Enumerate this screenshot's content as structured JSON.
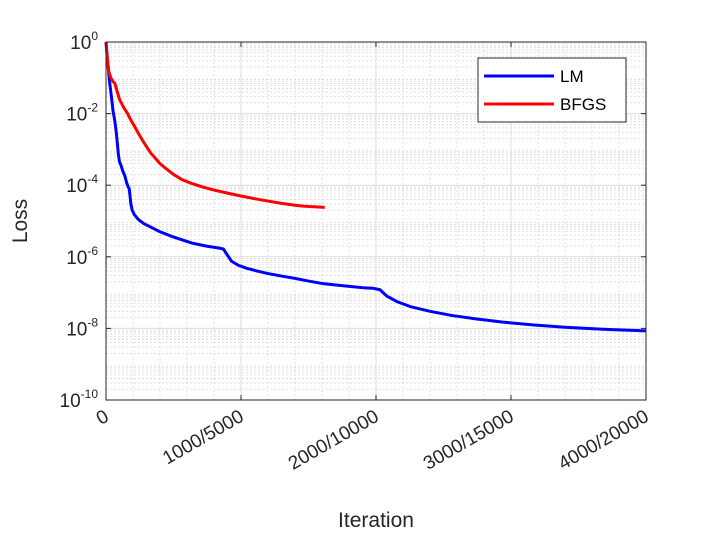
{
  "chart_data": {
    "type": "line",
    "title": "",
    "xlabel": "Iteration",
    "ylabel": "Loss",
    "yscale": "log",
    "xlim": [
      0,
      20000
    ],
    "ylim": [
      1e-10,
      1
    ],
    "grid": "on (major and minor)",
    "legend_position": "top-right",
    "x_tick_values": [
      0,
      5000,
      10000,
      15000,
      20000
    ],
    "x_tick_labels": [
      "0",
      "1000/5000",
      "2000/10000",
      "3000/15000",
      "4000/20000"
    ],
    "y_tick_exponents": [
      0,
      -2,
      -4,
      -6,
      -8,
      -10
    ],
    "y_tick_base": "10",
    "series": [
      {
        "name": "LM",
        "color": "#0000ff",
        "points": [
          [
            0,
            1
          ],
          [
            60,
            0.3
          ],
          [
            130,
            0.08
          ],
          [
            200,
            0.03
          ],
          [
            260,
            0.012
          ],
          [
            330,
            0.006
          ],
          [
            380,
            0.003
          ],
          [
            420,
            0.0015
          ],
          [
            460,
            0.0007
          ],
          [
            500,
            0.00045
          ],
          [
            560,
            0.00035
          ],
          [
            620,
            0.00025
          ],
          [
            700,
            0.00018
          ],
          [
            760,
            0.00012
          ],
          [
            820,
            9e-05
          ],
          [
            860,
            8e-05
          ],
          [
            890,
            5e-05
          ],
          [
            920,
            3e-05
          ],
          [
            970,
            2e-05
          ],
          [
            1050,
            1.5e-05
          ],
          [
            1200,
            1.1e-05
          ],
          [
            1400,
            8.5e-06
          ],
          [
            1700,
            6.5e-06
          ],
          [
            2000,
            5e-06
          ],
          [
            2400,
            3.8e-06
          ],
          [
            2800,
            3e-06
          ],
          [
            3200,
            2.4e-06
          ],
          [
            3700,
            2e-06
          ],
          [
            4200,
            1.75e-06
          ],
          [
            4350,
            1.65e-06
          ],
          [
            4500,
            1.1e-06
          ],
          [
            4650,
            7.5e-07
          ],
          [
            4900,
            5.8e-07
          ],
          [
            5200,
            4.8e-07
          ],
          [
            5600,
            4e-07
          ],
          [
            6000,
            3.4e-07
          ],
          [
            6500,
            2.9e-07
          ],
          [
            7000,
            2.5e-07
          ],
          [
            7500,
            2.1e-07
          ],
          [
            8000,
            1.8e-07
          ],
          [
            8600,
            1.6e-07
          ],
          [
            9200,
            1.45e-07
          ],
          [
            9600,
            1.35e-07
          ],
          [
            9900,
            1.32e-07
          ],
          [
            10150,
            1.2e-07
          ],
          [
            10400,
            8e-08
          ],
          [
            10800,
            5.5e-08
          ],
          [
            11300,
            4e-08
          ],
          [
            12000,
            3e-08
          ],
          [
            12800,
            2.3e-08
          ],
          [
            13700,
            1.85e-08
          ],
          [
            14700,
            1.5e-08
          ],
          [
            15800,
            1.25e-08
          ],
          [
            17000,
            1.08e-08
          ],
          [
            18400,
            9.5e-09
          ],
          [
            20000,
            8.5e-09
          ]
        ]
      },
      {
        "name": "BFGS",
        "color": "#ff0000",
        "points": [
          [
            0,
            1
          ],
          [
            40,
            0.4
          ],
          [
            100,
            0.15
          ],
          [
            180,
            0.1
          ],
          [
            250,
            0.08
          ],
          [
            330,
            0.07
          ],
          [
            400,
            0.045
          ],
          [
            500,
            0.025
          ],
          [
            650,
            0.015
          ],
          [
            800,
            0.01
          ],
          [
            900,
            0.007
          ],
          [
            1050,
            0.0045
          ],
          [
            1200,
            0.0028
          ],
          [
            1350,
            0.0018
          ],
          [
            1500,
            0.0012
          ],
          [
            1650,
            0.0008
          ],
          [
            1800,
            0.0006
          ],
          [
            2000,
            0.0004
          ],
          [
            2200,
            0.0003
          ],
          [
            2500,
            0.0002
          ],
          [
            2800,
            0.000145
          ],
          [
            3200,
            0.00011
          ],
          [
            3600,
            8.8e-05
          ],
          [
            4000,
            7.3e-05
          ],
          [
            4500,
            6e-05
          ],
          [
            5000,
            5e-05
          ],
          [
            5500,
            4.2e-05
          ],
          [
            6000,
            3.6e-05
          ],
          [
            6500,
            3.1e-05
          ],
          [
            7000,
            2.75e-05
          ],
          [
            7300,
            2.6e-05
          ],
          [
            8100,
            2.4e-05
          ]
        ]
      }
    ]
  }
}
